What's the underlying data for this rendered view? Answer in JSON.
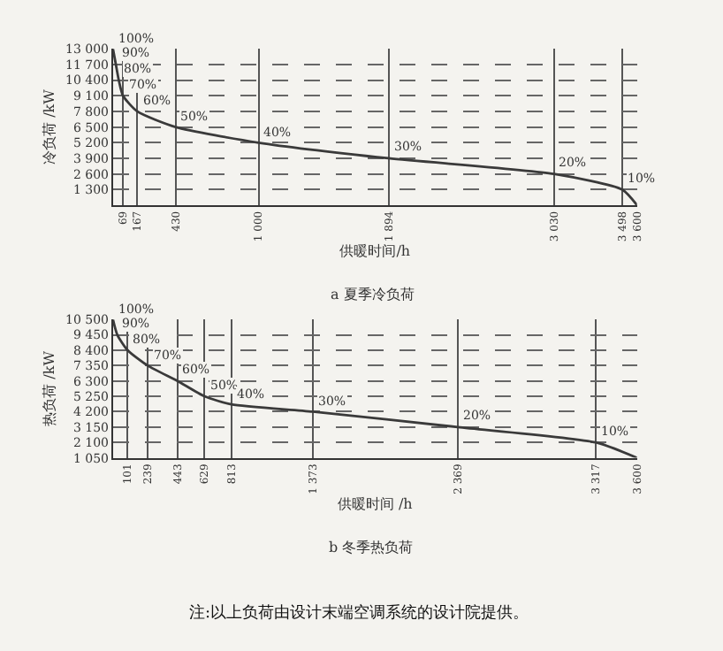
{
  "chart_data": [
    {
      "type": "line",
      "title": "a 夏季冷负荷",
      "xlabel": "供暖时间/h",
      "ylabel": "冷负荷 /kW",
      "x": [
        0,
        20,
        40,
        69,
        167,
        430,
        1000,
        1894,
        3030,
        3498,
        3600
      ],
      "series": [
        {
          "color": "#3a3a3a",
          "values": [
            13000,
            11700,
            10400,
            9100,
            7800,
            6500,
            5200,
            3900,
            2600,
            1300,
            0
          ]
        }
      ],
      "xlim": [
        0,
        3600
      ],
      "xticks": [
        69,
        167,
        430,
        1000,
        1894,
        3030,
        3498,
        3600
      ],
      "ylim": [
        0,
        13000
      ],
      "yticks": [
        {
          "value": 1300,
          "label": "1 300"
        },
        {
          "value": 2600,
          "label": "2 600"
        },
        {
          "value": 3900,
          "label": "3 900"
        },
        {
          "value": 5200,
          "label": "5 200"
        },
        {
          "value": 6500,
          "label": "6 500"
        },
        {
          "value": 7800,
          "label": "7 800"
        },
        {
          "value": 9100,
          "label": "9 100"
        },
        {
          "value": 10400,
          "label": "10 400"
        },
        {
          "value": 11700,
          "label": "11 700"
        },
        {
          "value": 13000,
          "label": "13 000"
        }
      ],
      "grid": true,
      "marker": "none",
      "line_style": "solid",
      "annotations": [
        {
          "text": "100%",
          "x": 0,
          "y": 13000
        },
        {
          "text": "90%",
          "x": 20,
          "y": 11700
        },
        {
          "text": "80%",
          "x": 40,
          "y": 10400
        },
        {
          "text": "70%",
          "x": 69,
          "y": 9100
        },
        {
          "text": "60%",
          "x": 167,
          "y": 7800
        },
        {
          "text": "50%",
          "x": 430,
          "y": 6500
        },
        {
          "text": "40%",
          "x": 1000,
          "y": 5200
        },
        {
          "text": "30%",
          "x": 1894,
          "y": 3900
        },
        {
          "text": "20%",
          "x": 3030,
          "y": 2600
        },
        {
          "text": "10%",
          "x": 3498,
          "y": 1300
        }
      ]
    },
    {
      "type": "line",
      "title": "b 冬季热负荷",
      "xlabel": "供暖时间 /h",
      "ylabel": "热负荷 /kW",
      "x": [
        0,
        30,
        101,
        239,
        443,
        629,
        813,
        1373,
        2369,
        3317,
        3600
      ],
      "series": [
        {
          "color": "#3a3a3a",
          "values": [
            10500,
            9450,
            8400,
            7350,
            6300,
            5250,
            4700,
            4200,
            3150,
            2100,
            1050
          ]
        }
      ],
      "xlim": [
        0,
        3600
      ],
      "xticks": [
        101,
        239,
        443,
        629,
        813,
        1373,
        2369,
        3317,
        3600
      ],
      "ylim": [
        1050,
        10500
      ],
      "yticks": [
        {
          "value": 1050,
          "label": "1 050"
        },
        {
          "value": 2100,
          "label": "2 100"
        },
        {
          "value": 3150,
          "label": "3 150"
        },
        {
          "value": 4200,
          "label": "4 200"
        },
        {
          "value": 5250,
          "label": "5 250"
        },
        {
          "value": 6300,
          "label": "6 300"
        },
        {
          "value": 7350,
          "label": "7 350"
        },
        {
          "value": 8400,
          "label": "8 400"
        },
        {
          "value": 9450,
          "label": "9 450"
        },
        {
          "value": 10500,
          "label": "10 500"
        }
      ],
      "grid": true,
      "marker": "none",
      "line_style": "solid",
      "annotations": [
        {
          "text": "100%",
          "x": 0,
          "y": 10500
        },
        {
          "text": "90%",
          "x": 30,
          "y": 9450
        },
        {
          "text": "80%",
          "x": 101,
          "y": 8400
        },
        {
          "text": "70%",
          "x": 239,
          "y": 7350
        },
        {
          "text": "60%",
          "x": 443,
          "y": 6300
        },
        {
          "text": "50%",
          "x": 629,
          "y": 5250
        },
        {
          "text": "40%",
          "x": 813,
          "y": 4700
        },
        {
          "text": "30%",
          "x": 1373,
          "y": 4200
        },
        {
          "text": "20%",
          "x": 2369,
          "y": 3150
        },
        {
          "text": "10%",
          "x": 3317,
          "y": 2100
        },
        "注:以上负荷由设计末端空调系统的设计院提供。"
      ]
    }
  ]
}
